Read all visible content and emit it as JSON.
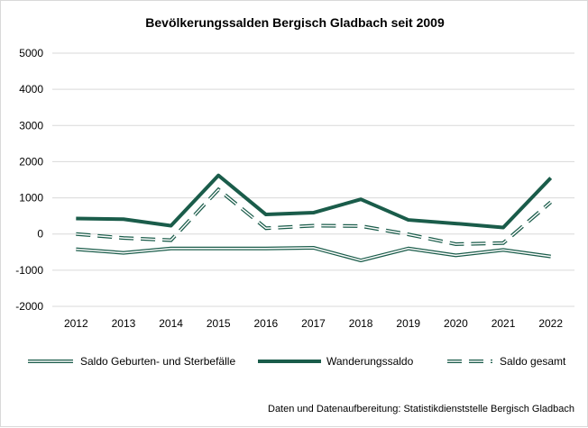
{
  "chart_data": {
    "type": "line",
    "title": "Bevölkerungssalden Bergisch Gladbach seit 2009",
    "categories": [
      "2012",
      "2013",
      "2014",
      "2015",
      "2016",
      "2017",
      "2018",
      "2019",
      "2020",
      "2021",
      "2022"
    ],
    "ylim": [
      -2000,
      5000
    ],
    "yticks": [
      -2000,
      -1000,
      0,
      1000,
      2000,
      3000,
      4000,
      5000
    ],
    "grid": true,
    "legend_position": "bottom",
    "series": [
      {
        "name": "Saldo Geburten- und Sterbefälle",
        "style": "double-line",
        "values": [
          -420,
          -520,
          -400,
          -400,
          -400,
          -380,
          -730,
          -400,
          -590,
          -440,
          -620
        ]
      },
      {
        "name": "Wanderungssaldo",
        "style": "thick-solid",
        "values": [
          430,
          410,
          230,
          1620,
          540,
          590,
          960,
          390,
          290,
          180,
          1550
        ]
      },
      {
        "name": "Saldo gesamt",
        "style": "dashed-double",
        "values": [
          0,
          -110,
          -170,
          1230,
          160,
          230,
          220,
          -10,
          -280,
          -250,
          880
        ]
      }
    ],
    "colors": {
      "series": "#1a5c4a",
      "grid": "#d9d9d9",
      "text": "#000000"
    },
    "source_note": "Daten und Datenaufbereitung: Statistikdienststelle Bergisch Gladbach"
  }
}
